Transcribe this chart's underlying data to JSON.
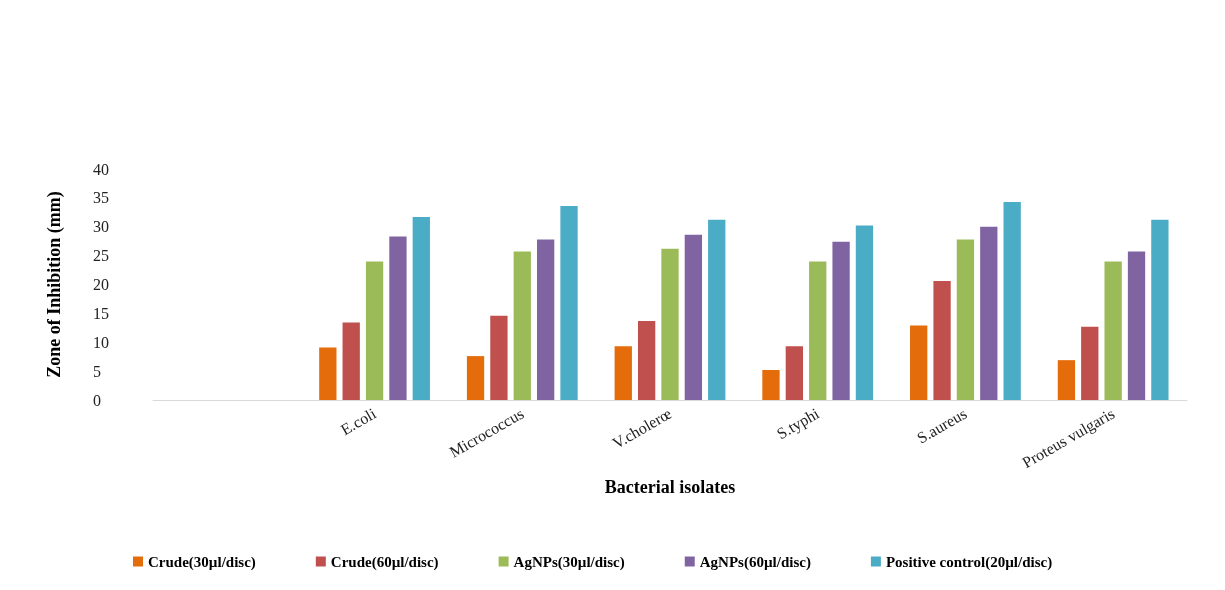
{
  "chart_data": {
    "type": "bar",
    "xlabel": "Bacterial isolates",
    "ylabel": "Zone of Inhibition (mm)",
    "categories": [
      null,
      "E.coli",
      "Micrococcus",
      "V.cholerœ",
      "S.typhi",
      "S.aureus",
      "Proteus vulgaris"
    ],
    "series": [
      {
        "name": "Crude(30µl/disc)",
        "color": "#e46c0a",
        "values": [
          null,
          9.1,
          7.6,
          9.3,
          5.2,
          12.9,
          6.9
        ]
      },
      {
        "name": "Crude(60µl/disc)",
        "color": "#c0504d",
        "values": [
          null,
          13.4,
          14.6,
          13.7,
          9.3,
          20.6,
          12.7
        ]
      },
      {
        "name": "AgNPs(30µl/disc)",
        "color": "#9bbb59",
        "values": [
          null,
          24.0,
          25.7,
          26.2,
          24.0,
          27.8,
          24.0
        ]
      },
      {
        "name": "AgNPs(60µl/disc)",
        "color": "#8064a2",
        "values": [
          null,
          28.3,
          27.8,
          28.6,
          27.4,
          30.0,
          25.7
        ]
      },
      {
        "name": "Positive control(20µl/disc)",
        "color": "#4bacc6",
        "values": [
          null,
          31.7,
          33.6,
          31.2,
          30.2,
          34.3,
          31.2
        ]
      }
    ],
    "ylim": [
      0,
      40
    ],
    "yticks": [
      0,
      5,
      10,
      15,
      20,
      25,
      30,
      35,
      40
    ],
    "grid": false,
    "legend": "bottom"
  }
}
